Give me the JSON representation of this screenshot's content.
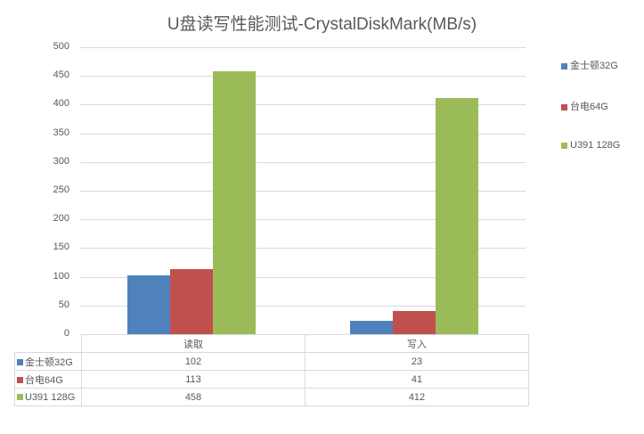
{
  "chart_data": {
    "type": "bar",
    "title": "U盘读写性能测试-CrystalDiskMark(MB/s)",
    "categories": [
      "读取",
      "写入"
    ],
    "series": [
      {
        "name": "金士顿32G",
        "values": [
          102,
          23
        ],
        "color": "#4f81bd"
      },
      {
        "name": "台电64G",
        "values": [
          113,
          41
        ],
        "color": "#c0504d"
      },
      {
        "name": "U391 128G",
        "values": [
          458,
          412
        ],
        "color": "#9bbb59"
      }
    ],
    "xlabel": "",
    "ylabel": "",
    "ylim": [
      0,
      500
    ],
    "yticks": [
      "0",
      "50",
      "100",
      "150",
      "200",
      "250",
      "300",
      "350",
      "400",
      "450",
      "500"
    ],
    "grid": true,
    "legend_position": "right",
    "data_table": true
  },
  "table": {
    "headers": [
      "读取",
      "写入"
    ],
    "rows": [
      {
        "label": "金士顿32G",
        "values": [
          "102",
          "23"
        ]
      },
      {
        "label": "台电64G",
        "values": [
          "113",
          "41"
        ]
      },
      {
        "label": "U391 128G",
        "values": [
          "458",
          "412"
        ]
      }
    ]
  }
}
